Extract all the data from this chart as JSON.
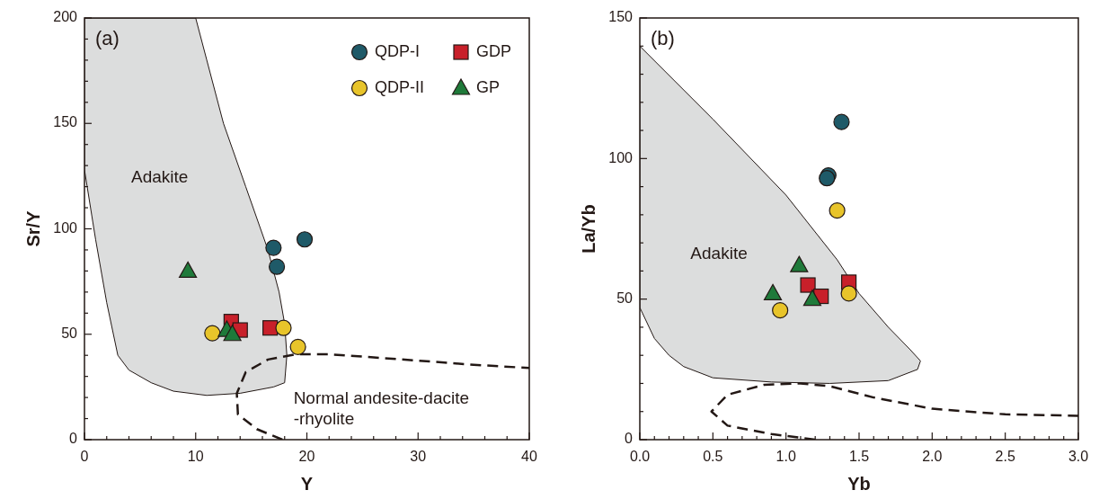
{
  "chart_data": [
    {
      "type": "scatter",
      "title": "(a)",
      "xlabel": "Y",
      "ylabel": "Sr/Y",
      "xlim": [
        0,
        40
      ],
      "ylim": [
        0,
        200
      ],
      "xticks": [
        0,
        {
          "value": 2,
          "label": null
        },
        {
          "value": 4,
          "label": null
        },
        {
          "value": 6,
          "label": null
        },
        {
          "value": 8,
          "label": null
        },
        10,
        {
          "value": 12,
          "label": null
        },
        {
          "value": 14,
          "label": null
        },
        {
          "value": 16,
          "label": null
        },
        {
          "value": 18,
          "label": null
        },
        20,
        {
          "value": 22,
          "label": null
        },
        {
          "value": 24,
          "label": null
        },
        {
          "value": 26,
          "label": null
        },
        {
          "value": 28,
          "label": null
        },
        30,
        {
          "value": 32,
          "label": null
        },
        {
          "value": 34,
          "label": null
        },
        {
          "value": 36,
          "label": null
        },
        {
          "value": 38,
          "label": null
        },
        40
      ],
      "yticks": [
        0,
        {
          "value": 10,
          "label": null
        },
        {
          "value": 20,
          "label": null
        },
        {
          "value": 30,
          "label": null
        },
        {
          "value": 40,
          "label": null
        },
        50,
        {
          "value": 60,
          "label": null
        },
        {
          "value": 70,
          "label": null
        },
        {
          "value": 80,
          "label": null
        },
        {
          "value": 90,
          "label": null
        },
        100,
        {
          "value": 110,
          "label": null
        },
        {
          "value": 120,
          "label": null
        },
        {
          "value": 130,
          "label": null
        },
        {
          "value": 140,
          "label": null
        },
        150,
        {
          "value": 160,
          "label": null
        },
        {
          "value": 170,
          "label": null
        },
        {
          "value": 180,
          "label": null
        },
        {
          "value": 190,
          "label": null
        },
        200
      ],
      "legend": "top right",
      "annotations": [
        "Adakite",
        "Normal andesite-dacite\n-rhyolite"
      ],
      "series": [
        {
          "type": "area",
          "color": "#dcdddd",
          "x": [
            0,
            10,
            11,
            12.5,
            14.5,
            16.5,
            17.5,
            18.0,
            18.2,
            18.0,
            17,
            14,
            11,
            8,
            6,
            4,
            3,
            2,
            1,
            0
          ],
          "values": [
            200,
            200,
            180,
            150,
            120,
            90,
            70,
            55,
            40,
            27,
            25,
            22,
            21,
            23,
            27,
            33,
            40,
            65,
            95,
            128
          ]
        },
        {
          "type": "line",
          "line_style": "dashed",
          "color": "#231815",
          "x": [
            17.8,
            15.5,
            13.8,
            13.7,
            14.5,
            16.5,
            19,
            22,
            26,
            30,
            35,
            40
          ],
          "values": [
            0,
            5,
            12,
            22,
            32,
            38,
            40.5,
            40.5,
            39,
            37.5,
            35.5,
            34
          ]
        },
        {
          "name": "QDP-I",
          "marker": "circle",
          "color": "#1f5a68",
          "x": [
            17.0,
            17.3,
            19.8
          ],
          "values": [
            91,
            82,
            95
          ]
        },
        {
          "name": "GDP",
          "marker": "square",
          "color": "#c8202a",
          "x": [
            13.2,
            14.0,
            16.7
          ],
          "values": [
            56,
            52,
            53
          ]
        },
        {
          "name": "QDP-II",
          "marker": "circle",
          "color": "#e8c42a",
          "x": [
            11.5,
            17.9,
            19.2
          ],
          "values": [
            50.5,
            53,
            44
          ]
        },
        {
          "name": "GP",
          "marker": "triangle",
          "color": "#1f7a3a",
          "x": [
            9.3,
            12.8,
            13.3
          ],
          "values": [
            80,
            52,
            50
          ]
        }
      ]
    },
    {
      "type": "scatter",
      "title": "(b)",
      "xlabel": "Yb",
      "ylabel": "La/Yb",
      "xlim": [
        0,
        3
      ],
      "ylim": [
        0,
        150
      ],
      "xticks": [
        {
          "value": 0,
          "label": "0.0"
        },
        {
          "value": 0.1,
          "label": null
        },
        {
          "value": 0.2,
          "label": null
        },
        {
          "value": 0.3,
          "label": null
        },
        {
          "value": 0.4,
          "label": null
        },
        0.5,
        {
          "value": 0.6,
          "label": null
        },
        {
          "value": 0.7,
          "label": null
        },
        {
          "value": 0.8,
          "label": null
        },
        {
          "value": 0.9,
          "label": null
        },
        {
          "value": 1,
          "label": "1.0"
        },
        {
          "value": 1.1,
          "label": null
        },
        {
          "value": 1.2,
          "label": null
        },
        {
          "value": 1.3,
          "label": null
        },
        {
          "value": 1.4,
          "label": null
        },
        1.5,
        {
          "value": 1.6,
          "label": null
        },
        {
          "value": 1.7,
          "label": null
        },
        {
          "value": 1.8,
          "label": null
        },
        {
          "value": 1.9,
          "label": null
        },
        {
          "value": 2,
          "label": "2.0"
        },
        {
          "value": 2.1,
          "label": null
        },
        {
          "value": 2.2,
          "label": null
        },
        {
          "value": 2.3,
          "label": null
        },
        {
          "value": 2.4,
          "label": null
        },
        2.5,
        {
          "value": 2.6,
          "label": null
        },
        {
          "value": 2.7,
          "label": null
        },
        {
          "value": 2.8,
          "label": null
        },
        {
          "value": 2.9,
          "label": null
        },
        {
          "value": 3,
          "label": "3.0"
        }
      ],
      "yticks": [
        0,
        {
          "value": 10,
          "label": null
        },
        {
          "value": 20,
          "label": null
        },
        {
          "value": 30,
          "label": null
        },
        {
          "value": 40,
          "label": null
        },
        50,
        {
          "value": 60,
          "label": null
        },
        {
          "value": 70,
          "label": null
        },
        {
          "value": 80,
          "label": null
        },
        {
          "value": 90,
          "label": null
        },
        100,
        {
          "value": 110,
          "label": null
        },
        {
          "value": 120,
          "label": null
        },
        {
          "value": 130,
          "label": null
        },
        {
          "value": 140,
          "label": null
        },
        150
      ],
      "annotations": [
        "Adakite"
      ],
      "series": [
        {
          "type": "area",
          "color": "#dcdddd",
          "x": [
            0,
            0.5,
            1.0,
            1.35,
            1.5,
            1.7,
            1.85,
            1.92,
            1.9,
            1.7,
            1.3,
            0.9,
            0.5,
            0.3,
            0.2,
            0.1,
            0
          ],
          "values": [
            140,
            114,
            87,
            64,
            52,
            40,
            32,
            28,
            25,
            21,
            20,
            20.5,
            22,
            26,
            30,
            36,
            47
          ]
        },
        {
          "type": "line",
          "line_style": "dashed",
          "color": "#231815",
          "x": [
            1.2,
            0.9,
            0.6,
            0.49,
            0.6,
            0.85,
            1.1,
            1.3,
            1.6,
            2.0,
            2.5,
            3.0
          ],
          "values": [
            0,
            2,
            5,
            10,
            16,
            19.5,
            20,
            19,
            15,
            11,
            9,
            8.5
          ]
        },
        {
          "marker": "circle",
          "color": "#1f5a68",
          "x": [
            1.38,
            1.29,
            1.28
          ],
          "values": [
            113,
            94,
            93
          ]
        },
        {
          "marker": "square",
          "color": "#c8202a",
          "x": [
            1.15,
            1.24,
            1.43
          ],
          "values": [
            55,
            51,
            56
          ]
        },
        {
          "marker": "circle",
          "color": "#e8c42a",
          "x": [
            1.35,
            0.96,
            1.43
          ],
          "values": [
            81.5,
            46,
            52
          ]
        },
        {
          "marker": "triangle",
          "color": "#1f7a3a",
          "x": [
            0.91,
            1.09,
            1.18
          ],
          "values": [
            52,
            62,
            50
          ]
        }
      ]
    }
  ]
}
